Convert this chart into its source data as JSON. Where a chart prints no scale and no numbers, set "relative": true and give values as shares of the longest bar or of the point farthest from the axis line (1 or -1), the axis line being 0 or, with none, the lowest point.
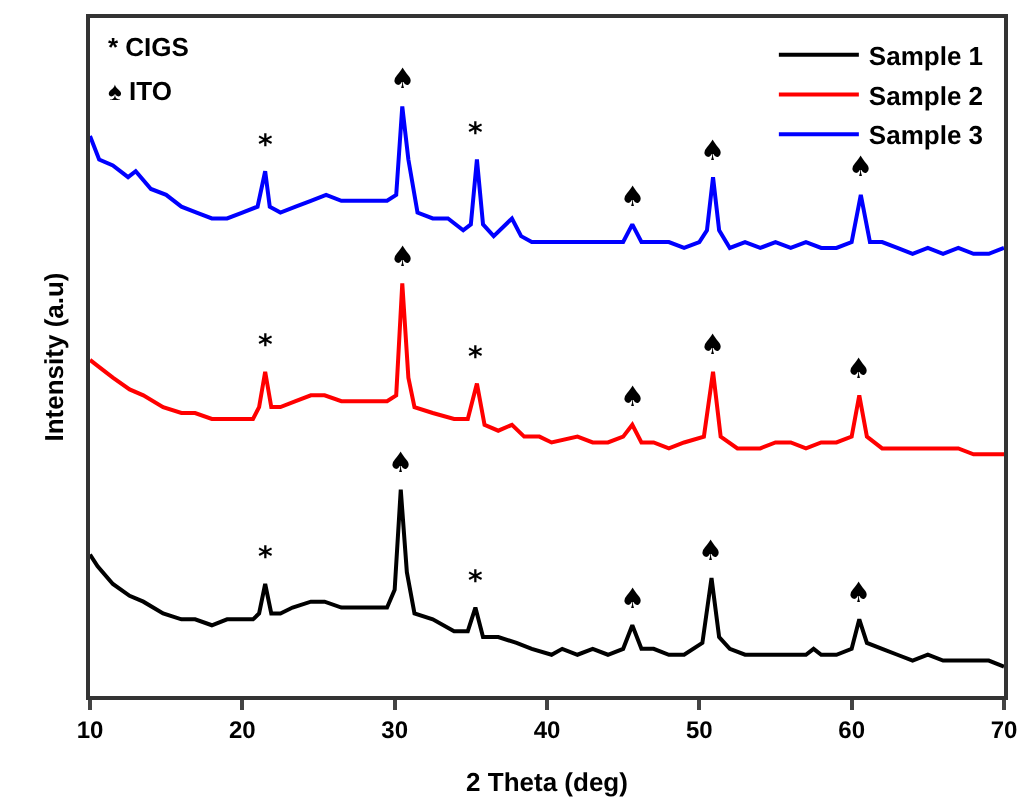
{
  "chart_data": {
    "type": "line",
    "relative": true,
    "xlabel": "2 Theta (deg)",
    "ylabel": "Intensity (a.u)",
    "xlim": [
      10,
      70
    ],
    "xticks": [
      10,
      20,
      30,
      40,
      50,
      60,
      70
    ],
    "legend": "top right",
    "series": [
      {
        "name": "Sample 1",
        "color": "#000000",
        "x": [
          10,
          10.5,
          11.5,
          12.6,
          13.5,
          14.8,
          16,
          16.9,
          18,
          19,
          20,
          20.7,
          21.1,
          21.5,
          21.9,
          22.5,
          23.3,
          24.5,
          25.4,
          26.5,
          27.5,
          28.5,
          29.5,
          30,
          30.4,
          30.8,
          31.3,
          32.5,
          33.9,
          34.8,
          35.3,
          35.8,
          36.8,
          38,
          39,
          40.3,
          41,
          42,
          43,
          44,
          45,
          45.6,
          46.2,
          47,
          48,
          49,
          50.2,
          50.8,
          51.3,
          52,
          53,
          54,
          55,
          56,
          57,
          57.5,
          58,
          59,
          60,
          60.5,
          61,
          62,
          63,
          64,
          65,
          66,
          67,
          68,
          69,
          70
        ],
        "values": [
          0.24,
          0.22,
          0.19,
          0.17,
          0.16,
          0.14,
          0.13,
          0.13,
          0.12,
          0.13,
          0.13,
          0.13,
          0.14,
          0.19,
          0.14,
          0.14,
          0.15,
          0.16,
          0.16,
          0.15,
          0.15,
          0.15,
          0.15,
          0.18,
          0.35,
          0.21,
          0.14,
          0.13,
          0.11,
          0.11,
          0.15,
          0.1,
          0.1,
          0.09,
          0.08,
          0.07,
          0.08,
          0.07,
          0.08,
          0.07,
          0.08,
          0.12,
          0.08,
          0.08,
          0.07,
          0.07,
          0.09,
          0.2,
          0.1,
          0.08,
          0.07,
          0.07,
          0.07,
          0.07,
          0.07,
          0.08,
          0.07,
          0.07,
          0.08,
          0.13,
          0.09,
          0.08,
          0.07,
          0.06,
          0.07,
          0.06,
          0.06,
          0.06,
          0.06,
          0.05
        ]
      },
      {
        "name": "Sample 2",
        "color": "#ff0000",
        "x": [
          10,
          10.5,
          11.5,
          12.6,
          13.5,
          14.8,
          16,
          16.9,
          18,
          19,
          20,
          20.7,
          21.1,
          21.5,
          21.9,
          22.5,
          23.5,
          24.5,
          25.4,
          26.5,
          27.5,
          28.5,
          29.5,
          30.1,
          30.5,
          30.9,
          31.3,
          32.5,
          33.9,
          34.8,
          35.4,
          35.9,
          36.8,
          37.7,
          38.5,
          39.5,
          40.3,
          42,
          43,
          44,
          45,
          45.6,
          46.2,
          47,
          48,
          49,
          50.3,
          50.9,
          51.4,
          52.5,
          54,
          55,
          56,
          57,
          58,
          59,
          60,
          60.5,
          61,
          62,
          63,
          64,
          65,
          66,
          67,
          68,
          69,
          70
        ],
        "values": [
          0.57,
          0.56,
          0.54,
          0.52,
          0.51,
          0.49,
          0.48,
          0.48,
          0.47,
          0.47,
          0.47,
          0.47,
          0.49,
          0.55,
          0.49,
          0.49,
          0.5,
          0.51,
          0.51,
          0.5,
          0.5,
          0.5,
          0.5,
          0.51,
          0.7,
          0.54,
          0.49,
          0.48,
          0.47,
          0.47,
          0.53,
          0.46,
          0.45,
          0.46,
          0.44,
          0.44,
          0.43,
          0.44,
          0.43,
          0.43,
          0.44,
          0.46,
          0.43,
          0.43,
          0.42,
          0.43,
          0.44,
          0.55,
          0.44,
          0.42,
          0.42,
          0.43,
          0.43,
          0.42,
          0.43,
          0.43,
          0.44,
          0.51,
          0.44,
          0.42,
          0.42,
          0.42,
          0.42,
          0.42,
          0.42,
          0.41,
          0.41,
          0.41
        ]
      },
      {
        "name": "Sample 3",
        "color": "#0000ff",
        "x": [
          10,
          10.6,
          11.5,
          12.5,
          13,
          14,
          15,
          16,
          17,
          18,
          19,
          20,
          21,
          21.5,
          21.8,
          22.5,
          23.5,
          24.5,
          25.5,
          26.5,
          27.5,
          28.5,
          29.5,
          30.1,
          30.5,
          30.9,
          31.5,
          32.5,
          33.5,
          34.5,
          35,
          35.4,
          35.8,
          36.5,
          37.7,
          38.3,
          39,
          40,
          41,
          42,
          43,
          44,
          45,
          45.6,
          46.2,
          47,
          48,
          49,
          50,
          50.5,
          50.9,
          51.3,
          52,
          53,
          54,
          55,
          56,
          57,
          58,
          59,
          60,
          60.6,
          61.2,
          62,
          63,
          64,
          65,
          66,
          67,
          68,
          69,
          70
        ],
        "values": [
          0.95,
          0.91,
          0.9,
          0.88,
          0.89,
          0.86,
          0.85,
          0.83,
          0.82,
          0.81,
          0.81,
          0.82,
          0.83,
          0.89,
          0.83,
          0.82,
          0.83,
          0.84,
          0.85,
          0.84,
          0.84,
          0.84,
          0.84,
          0.85,
          1.0,
          0.91,
          0.82,
          0.81,
          0.81,
          0.79,
          0.8,
          0.91,
          0.8,
          0.78,
          0.81,
          0.78,
          0.77,
          0.77,
          0.77,
          0.77,
          0.77,
          0.77,
          0.77,
          0.8,
          0.77,
          0.77,
          0.77,
          0.76,
          0.77,
          0.79,
          0.88,
          0.79,
          0.76,
          0.77,
          0.76,
          0.77,
          0.76,
          0.77,
          0.76,
          0.76,
          0.77,
          0.85,
          0.77,
          0.77,
          0.76,
          0.75,
          0.76,
          0.75,
          0.76,
          0.75,
          0.75,
          0.76
        ]
      }
    ],
    "annotations": [
      "* CIGS",
      "♠ ITO",
      {
        "text": "*",
        "x": 21.5,
        "y": 0.89
      },
      {
        "text": "♠",
        "x": 30.5,
        "y": 1.0
      },
      {
        "text": "*",
        "x": 35.4,
        "y": 0.91
      },
      {
        "text": "♠",
        "x": 45.6,
        "y": 0.8
      },
      {
        "text": "♠",
        "x": 50.9,
        "y": 0.88
      },
      {
        "text": "♠",
        "x": 60.6,
        "y": 0.85
      },
      {
        "text": "*",
        "x": 21.5,
        "y": 0.55
      },
      {
        "text": "♠",
        "x": 30.5,
        "y": 0.7
      },
      {
        "text": "*",
        "x": 35.4,
        "y": 0.53
      },
      {
        "text": "♠",
        "x": 45.6,
        "y": 0.46
      },
      {
        "text": "♠",
        "x": 50.9,
        "y": 0.55
      },
      {
        "text": "♠",
        "x": 60.5,
        "y": 0.51
      },
      {
        "text": "*",
        "x": 21.5,
        "y": 0.19
      },
      {
        "text": "♠",
        "x": 30.4,
        "y": 0.35
      },
      {
        "text": "*",
        "x": 35.3,
        "y": 0.15
      },
      {
        "text": "♠",
        "x": 45.6,
        "y": 0.12
      },
      {
        "text": "♠",
        "x": 50.8,
        "y": 0.2
      },
      {
        "text": "♠",
        "x": 60.5,
        "y": 0.13
      }
    ]
  }
}
